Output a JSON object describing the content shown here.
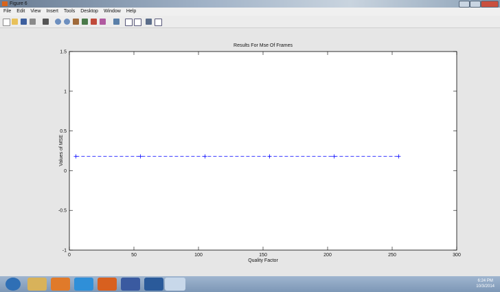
{
  "window": {
    "title": "Figure 6",
    "menu": [
      "File",
      "Edit",
      "View",
      "Insert",
      "Tools",
      "Desktop",
      "Window",
      "Help"
    ]
  },
  "chart_data": {
    "type": "line",
    "title": "Results For Mse Of Frames",
    "x_label": "Quality Factor",
    "y_label": "Values of MSE",
    "x": [
      5,
      55,
      105,
      155,
      205,
      255
    ],
    "series": [
      {
        "color": "#0000ff",
        "linestyle": "dashed",
        "marker": "+",
        "values": [
          0.18,
          0.18,
          0.18,
          0.18,
          0.18,
          0.18
        ]
      }
    ],
    "xlim": [
      0,
      300
    ],
    "xticks": [
      0,
      50,
      100,
      150,
      200,
      250,
      300
    ],
    "ylim": [
      -1,
      1.5
    ],
    "yticks": [
      -1,
      -0.5,
      0,
      0.5,
      1,
      1.5
    ],
    "grid": false
  },
  "taskbar": {
    "time": "6:24 PM",
    "date": "10/3/2014"
  }
}
